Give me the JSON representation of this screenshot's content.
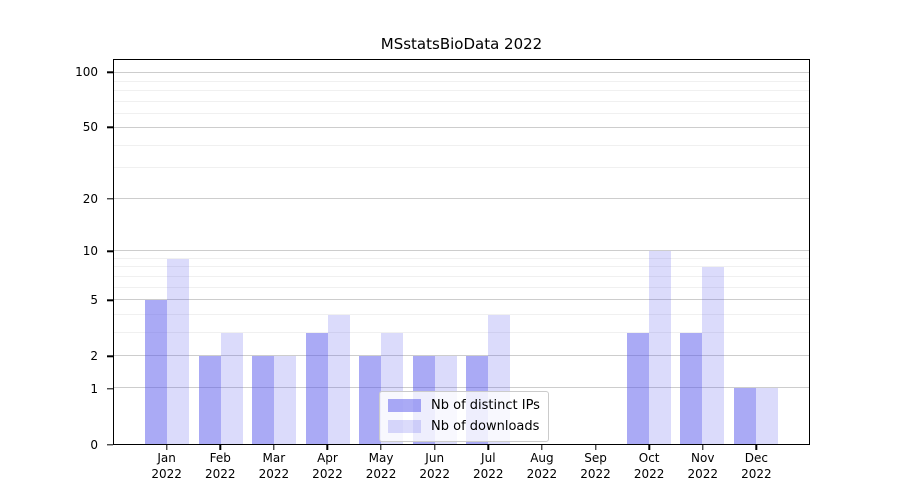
{
  "chart_data": {
    "type": "bar",
    "title": "MSstatsBioData 2022",
    "categories": [
      {
        "month": "Jan",
        "year": "2022"
      },
      {
        "month": "Feb",
        "year": "2022"
      },
      {
        "month": "Mar",
        "year": "2022"
      },
      {
        "month": "Apr",
        "year": "2022"
      },
      {
        "month": "May",
        "year": "2022"
      },
      {
        "month": "Jun",
        "year": "2022"
      },
      {
        "month": "Jul",
        "year": "2022"
      },
      {
        "month": "Aug",
        "year": "2022"
      },
      {
        "month": "Sep",
        "year": "2022"
      },
      {
        "month": "Oct",
        "year": "2022"
      },
      {
        "month": "Nov",
        "year": "2022"
      },
      {
        "month": "Dec",
        "year": "2022"
      }
    ],
    "series": [
      {
        "name": "Nb of distinct IPs",
        "color": "rgba(85,85,235,0.5)",
        "values": [
          5,
          2,
          2,
          3,
          2,
          2,
          2,
          0,
          0,
          3,
          3,
          1
        ]
      },
      {
        "name": "Nb of downloads",
        "color": "rgba(85,85,235,0.21)",
        "values": [
          9,
          3,
          2,
          4,
          3,
          2,
          4,
          0,
          0,
          10,
          8,
          1
        ]
      }
    ],
    "yscale": "log1p",
    "ylim": [
      0,
      118
    ],
    "grid": "on",
    "legend_position": "lower center",
    "y_axis_ticks": [
      {
        "label": "100",
        "value": 100
      },
      {
        "label": "50",
        "value": 50
      },
      {
        "label": "20",
        "value": 20
      },
      {
        "label": "10",
        "value": 10
      },
      {
        "label": "5",
        "value": 5
      },
      {
        "label": "2",
        "value": 2
      },
      {
        "label": "1",
        "value": 1
      },
      {
        "label": "0",
        "value": 0
      }
    ],
    "y_minor_gridlines": [
      3,
      4,
      6,
      7,
      8,
      9,
      30,
      40,
      60,
      70,
      80,
      90
    ]
  },
  "colors": {
    "bar_ips": "rgba(85,85,235,0.5)",
    "bar_downloads": "rgba(85,85,235,0.21)",
    "grid_major": "#cdcdcd",
    "grid_minor": "#f0f0f0",
    "axis": "#000000",
    "legend_border": "#cbcbcb",
    "legend_bg": "rgba(255,255,255,0.8)"
  }
}
